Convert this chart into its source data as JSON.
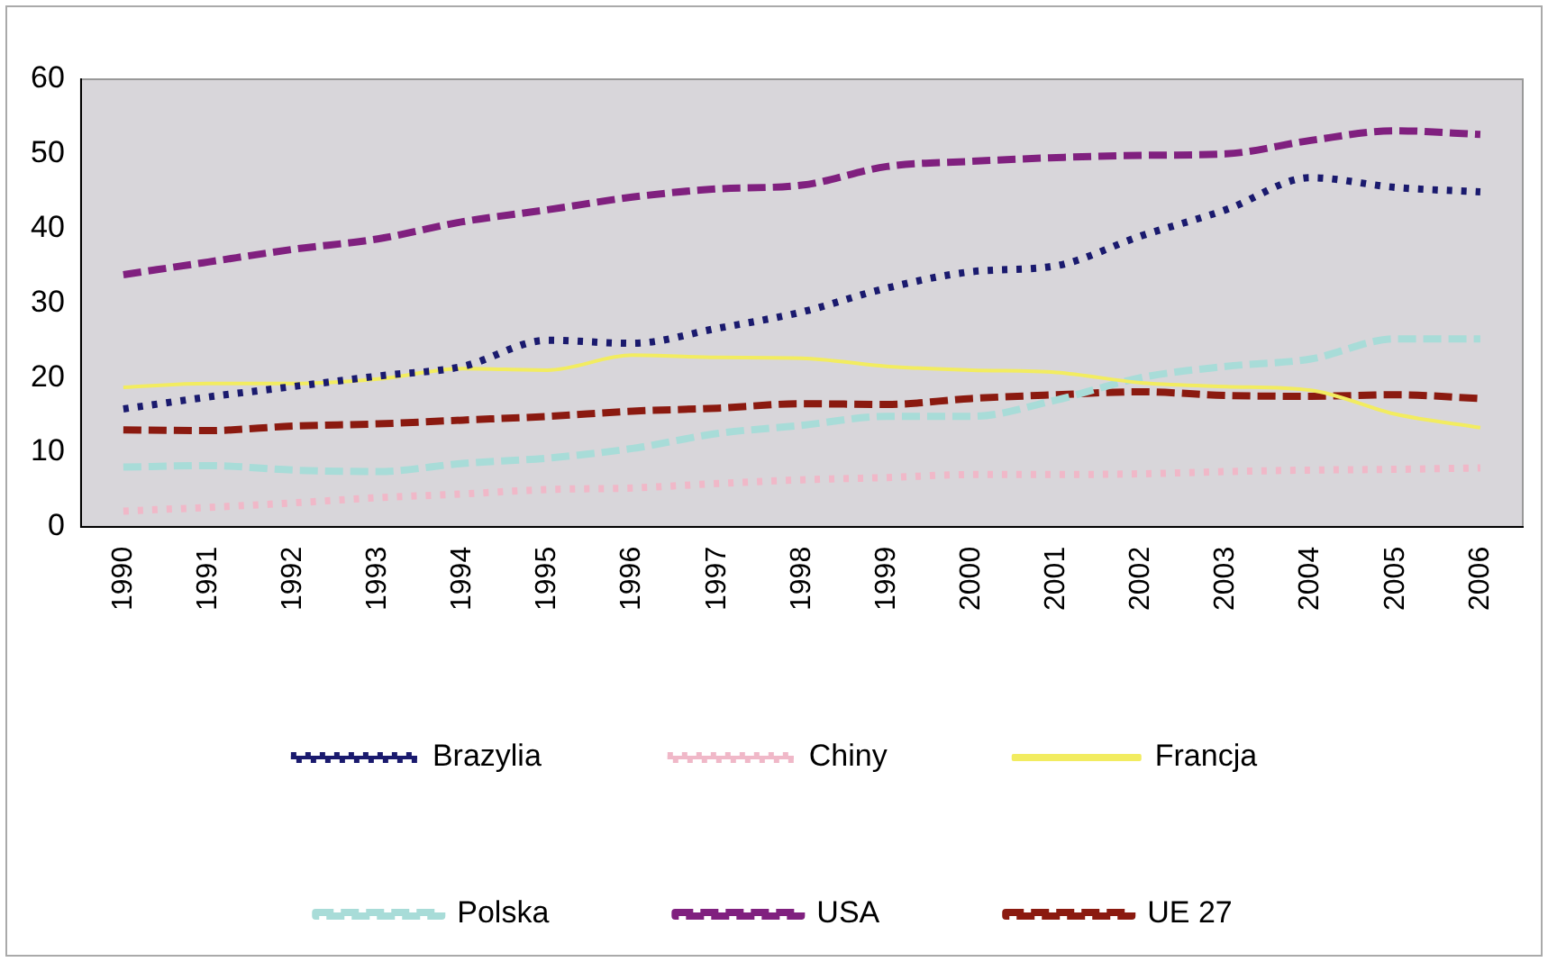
{
  "chart_data": {
    "type": "line",
    "categories": [
      "1990",
      "1991",
      "1992",
      "1993",
      "1994",
      "1995",
      "1996",
      "1997",
      "1998",
      "1999",
      "2000",
      "2001",
      "2002",
      "2003",
      "2004",
      "2005",
      "2006"
    ],
    "ylim": [
      0,
      60
    ],
    "yticks": [
      0,
      10,
      20,
      30,
      40,
      50,
      60
    ],
    "grid": false,
    "legend": "bottom",
    "marker": "none",
    "series": [
      {
        "name": "Brazylia",
        "color": "#1a1a6e",
        "line_style": "dotted",
        "values": [
          15.8,
          17.4,
          18.8,
          20.2,
          21.5,
          25,
          24.6,
          26.6,
          28.8,
          32,
          34.2,
          35,
          39,
          42.5,
          46.8,
          45.5,
          44.9
        ]
      },
      {
        "name": "Chiny",
        "color": "#f0b8c8",
        "line_style": "dotted",
        "values": [
          2.1,
          2.6,
          3.2,
          3.9,
          4.4,
          5,
          5.2,
          5.8,
          6.3,
          6.6,
          7,
          7,
          7.1,
          7.4,
          7.6,
          7.7,
          7.9
        ]
      },
      {
        "name": "Francja",
        "color": "#f2ec60",
        "line_style": "solid",
        "values": [
          18.7,
          19.2,
          19.2,
          19.8,
          21.2,
          21,
          23,
          22.7,
          22.6,
          21.5,
          21,
          20.7,
          19.3,
          18.8,
          18.3,
          15.1,
          13.3
        ]
      },
      {
        "name": "Polska",
        "color": "#a8dcd8",
        "line_style": "dashed",
        "values": [
          8,
          8.2,
          7.6,
          7.4,
          8.5,
          9.2,
          10.5,
          12.5,
          13.6,
          14.8,
          14.8,
          17,
          20,
          21.5,
          22.5,
          25.2,
          25.2
        ]
      },
      {
        "name": "USA",
        "color": "#80207f",
        "line_style": "dashed",
        "values": [
          33.8,
          35.5,
          37.2,
          38.6,
          40.9,
          42.5,
          44.2,
          45.3,
          45.8,
          48.3,
          49,
          49.5,
          49.8,
          50,
          51.8,
          53.1,
          52.6
        ]
      },
      {
        "name": "UE 27",
        "color": "#8b1a10",
        "line_style": "dashed",
        "values": [
          13,
          12.9,
          13.5,
          13.8,
          14.3,
          14.8,
          15.5,
          15.9,
          16.5,
          16.4,
          17.2,
          17.7,
          18.1,
          17.6,
          17.5,
          17.7,
          17.2
        ]
      }
    ]
  }
}
